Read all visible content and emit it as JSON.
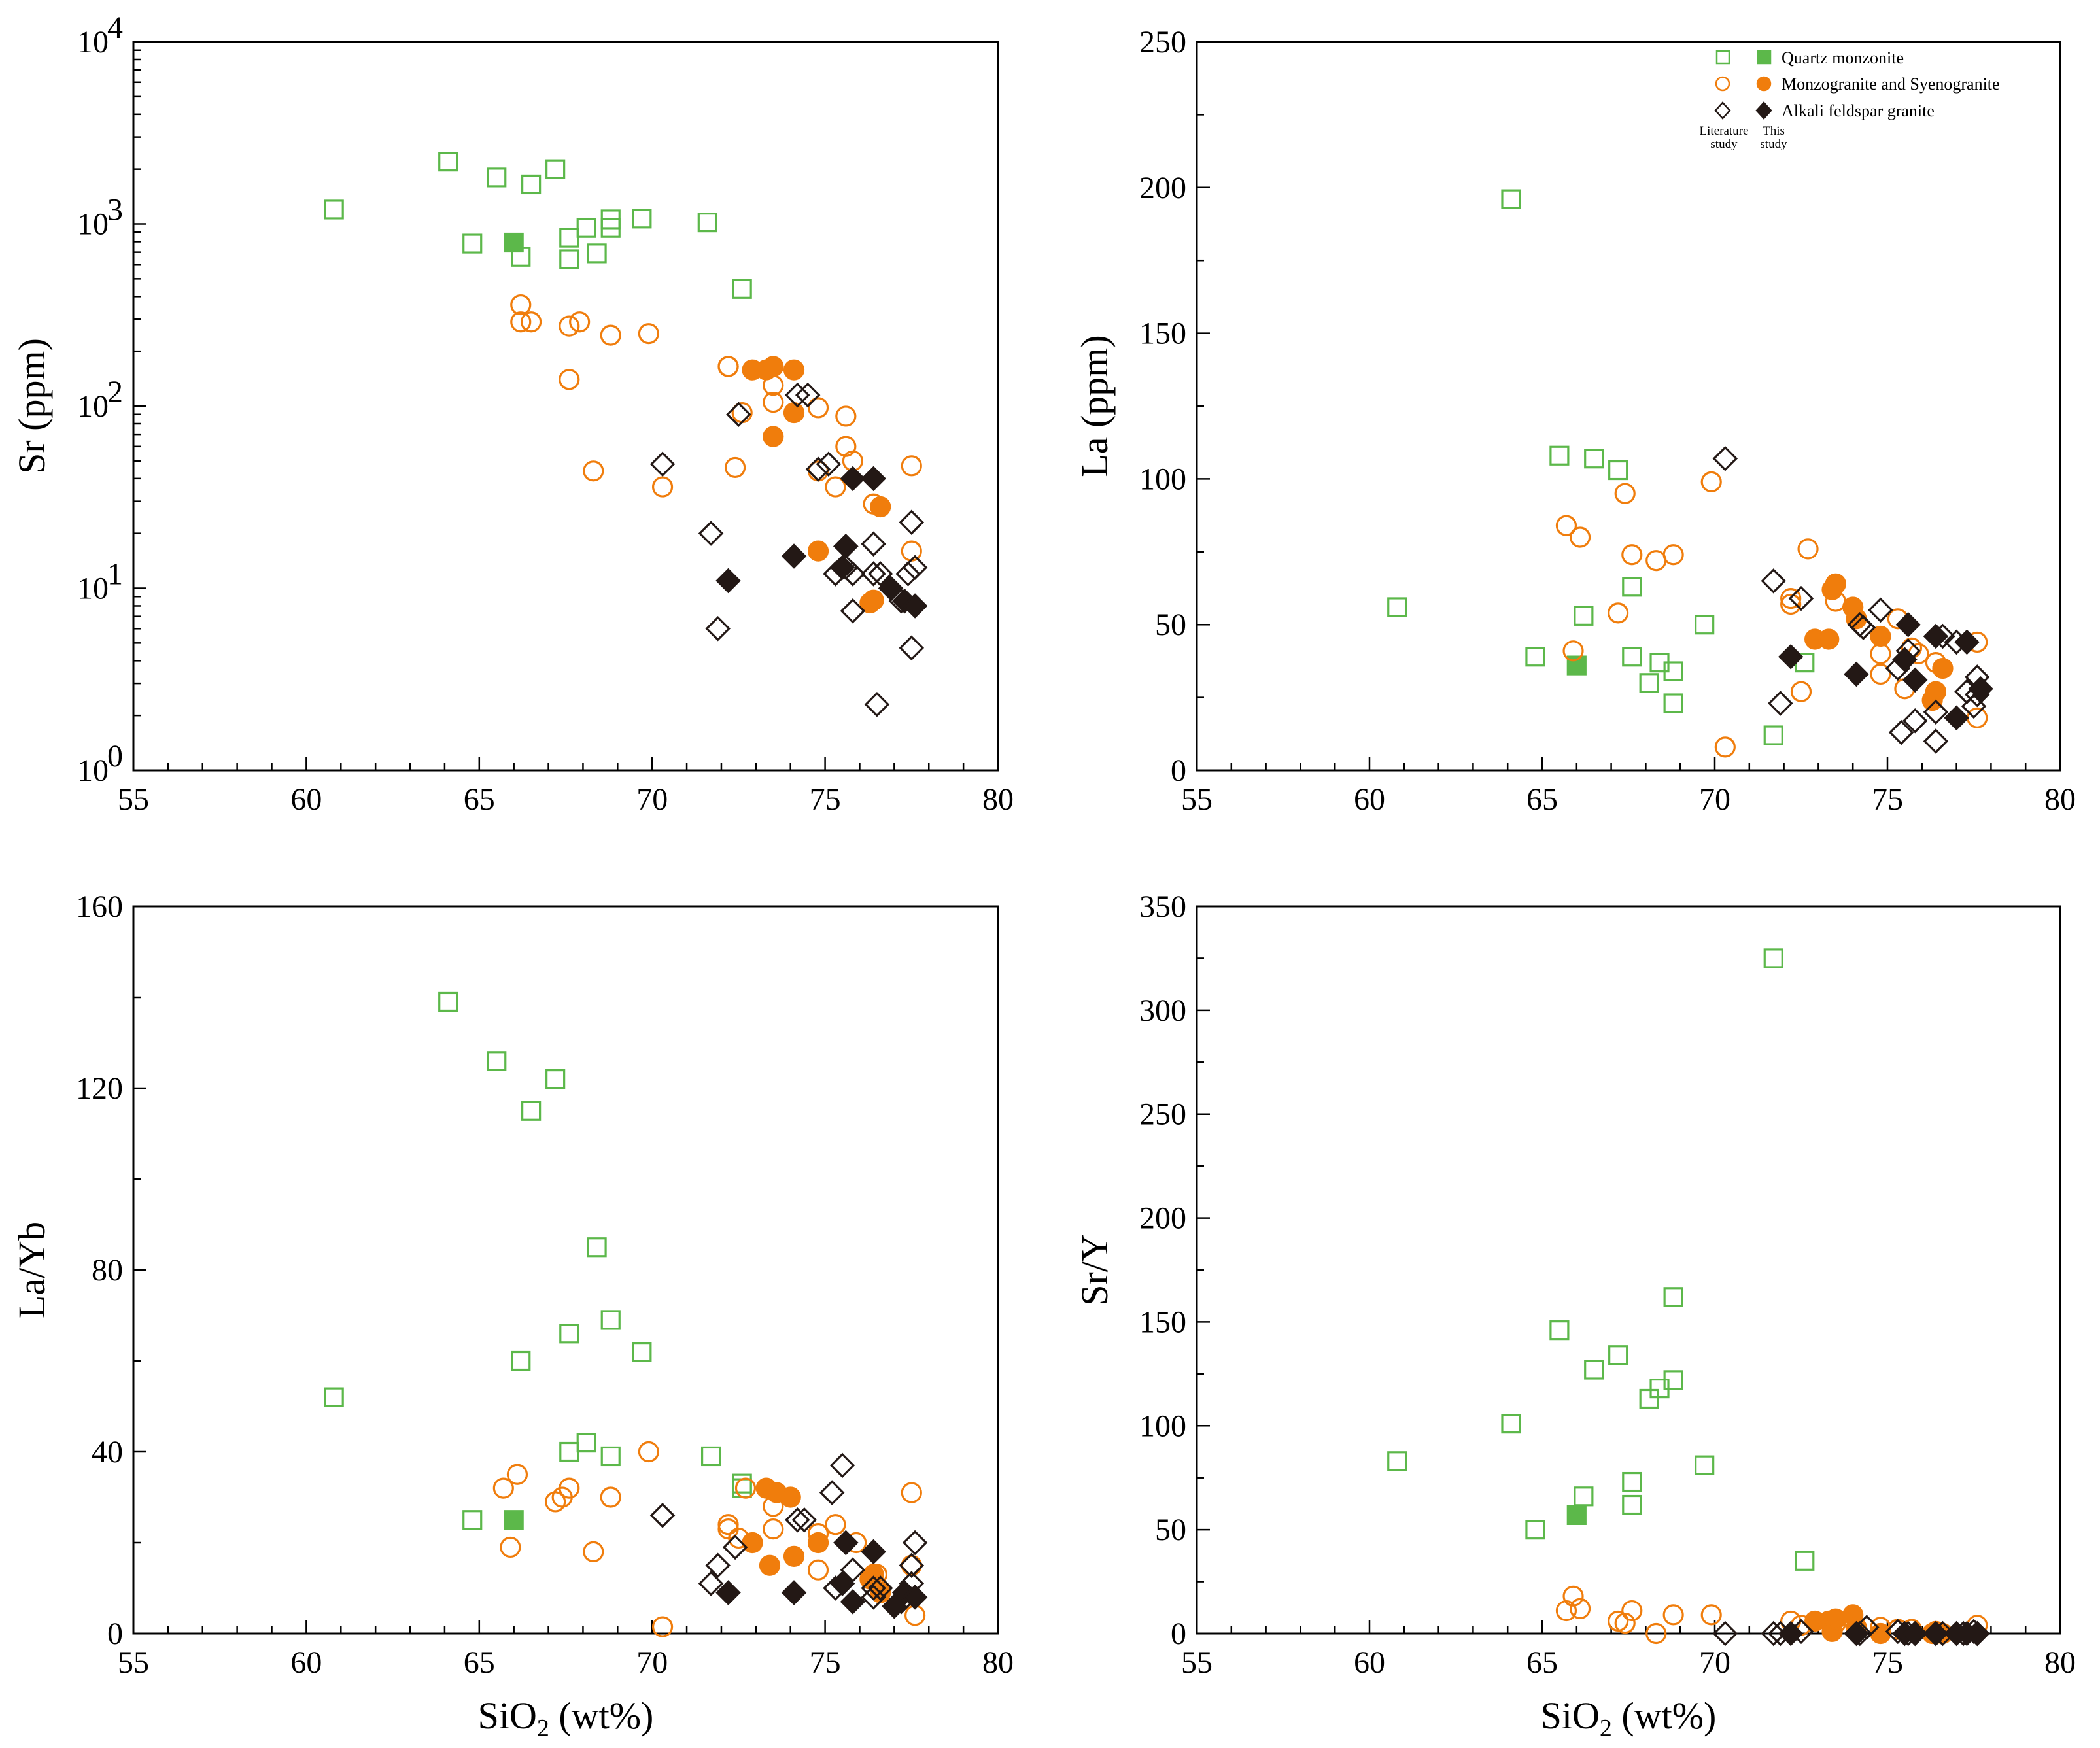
{
  "colors": {
    "quartz_monzonite": "#5cb84a",
    "monzogranite": "#f07d0c",
    "alkali_feldspar": "#231815",
    "axis": "#000000"
  },
  "legend": {
    "items": [
      {
        "key": "qm",
        "label": "Quartz monzonite"
      },
      {
        "key": "mg",
        "label": "Monzogranite  and Syenogranite"
      },
      {
        "key": "af",
        "label": "Alkali feldspar granite"
      }
    ],
    "literature_line1": "Literature",
    "literature_line2": "study",
    "this_line1": "This",
    "this_line2": "study"
  },
  "chart_data": [
    {
      "id": "sr",
      "type": "scatter",
      "ylabel": "Sr (ppm)",
      "xlabel": "",
      "yscale": "log",
      "xlim": [
        55,
        80
      ],
      "ylim": [
        1,
        10000
      ],
      "xticks": [
        "55",
        "60",
        "65",
        "70",
        "75",
        "80"
      ],
      "yticks": [
        {
          "base": "10",
          "exp": "0"
        },
        {
          "base": "10",
          "exp": "1"
        },
        {
          "base": "10",
          "exp": "2"
        },
        {
          "base": "10",
          "exp": "3"
        },
        {
          "base": "10",
          "exp": "4"
        }
      ],
      "series": [
        {
          "name": "Quartz monzonite (literature)",
          "marker": "square-open",
          "x": [
            60.8,
            64.1,
            64.8,
            65.5,
            66.2,
            66.5,
            67.2,
            67.6,
            67.6,
            68.1,
            68.4,
            68.8,
            68.8,
            69.7,
            71.6,
            72.6
          ],
          "y": [
            1200,
            2200,
            780,
            1800,
            660,
            1650,
            2000,
            840,
            640,
            950,
            690,
            950,
            1060,
            1070,
            1020,
            440
          ]
        },
        {
          "name": "Quartz monzonite (this study)",
          "marker": "square-filled",
          "x": [
            66.0
          ],
          "y": [
            790
          ]
        },
        {
          "name": "Monzogranite and Syenogranite (literature)",
          "marker": "circle-open",
          "x": [
            66.2,
            66.2,
            66.5,
            67.6,
            67.6,
            67.9,
            68.3,
            68.8,
            69.9,
            70.3,
            72.2,
            72.2,
            72.4,
            72.6,
            73.5,
            73.5,
            74.8,
            74.8,
            75.3,
            75.6,
            75.6,
            75.8,
            76.4,
            77.5,
            77.5
          ],
          "y": [
            360,
            290,
            290,
            140,
            275,
            290,
            44,
            245,
            250,
            36,
            165,
            165,
            46,
            92,
            130,
            105,
            98,
            44,
            36,
            88,
            60,
            50,
            29,
            47,
            16
          ]
        },
        {
          "name": "Monzogranite and Syenogranite (this study)",
          "marker": "circle-filled",
          "x": [
            72.9,
            73.3,
            73.5,
            74.1,
            73.5,
            74.1,
            74.8,
            76.3,
            76.4,
            76.6
          ],
          "y": [
            158,
            158,
            165,
            158,
            68,
            92,
            16,
            8.3,
            8.6,
            28
          ]
        },
        {
          "name": "Alkali feldspar granite (literature)",
          "marker": "diamond-open",
          "x": [
            70.3,
            71.7,
            71.9,
            72.5,
            74.2,
            74.5,
            74.8,
            75.1,
            75.3,
            75.6,
            75.6,
            75.8,
            75.8,
            76.4,
            76.4,
            76.6,
            77.2,
            77.4,
            77.5,
            77.5,
            77.6,
            76.5
          ],
          "y": [
            48,
            20,
            6,
            90,
            115,
            115,
            45,
            48,
            12,
            17,
            13,
            12,
            7.5,
            17.5,
            12,
            12,
            8.5,
            12,
            23,
            4.7,
            13,
            2.3
          ]
        },
        {
          "name": "Alkali feldspar granite (this study)",
          "marker": "diamond-filled",
          "x": [
            72.2,
            74.1,
            75.5,
            75.6,
            75.8,
            76.4,
            76.9,
            77.3,
            77.6
          ],
          "y": [
            11,
            15,
            13,
            17,
            40,
            40,
            10,
            8.5,
            8
          ]
        }
      ]
    },
    {
      "id": "la",
      "type": "scatter",
      "ylabel": "La (ppm)",
      "xlabel": "",
      "yscale": "linear",
      "xlim": [
        55,
        80
      ],
      "ylim": [
        0,
        250
      ],
      "xticks": [
        "55",
        "60",
        "65",
        "70",
        "75",
        "80"
      ],
      "yticks": [
        "0",
        "50",
        "100",
        "150",
        "200",
        "250"
      ],
      "series": [
        {
          "name": "Quartz monzonite (literature)",
          "marker": "square-open",
          "x": [
            60.8,
            64.1,
            64.8,
            65.5,
            66.2,
            66.5,
            67.2,
            67.6,
            67.6,
            68.1,
            68.4,
            68.8,
            68.8,
            69.7,
            71.7,
            72.6
          ],
          "y": [
            56,
            196,
            39,
            108,
            53,
            107,
            103,
            63,
            39,
            30,
            37,
            34,
            23,
            50,
            12,
            37
          ]
        },
        {
          "name": "Quartz monzonite (this study)",
          "marker": "square-filled",
          "x": [
            66.0
          ],
          "y": [
            36
          ]
        },
        {
          "name": "Monzogranite and Syenogranite (literature)",
          "marker": "circle-open",
          "x": [
            65.7,
            65.9,
            66.1,
            67.2,
            67.4,
            67.6,
            68.3,
            68.8,
            69.9,
            70.3,
            72.2,
            72.2,
            72.5,
            72.7,
            73.5,
            74.8,
            74.8,
            75.3,
            75.5,
            75.7,
            75.9,
            76.4,
            77.6,
            77.6
          ],
          "y": [
            84,
            41,
            80,
            54,
            95,
            74,
            72,
            74,
            99,
            8,
            59,
            57,
            27,
            76,
            58,
            40,
            33,
            52,
            28,
            42,
            40,
            37,
            44,
            18
          ]
        },
        {
          "name": "Monzogranite and Syenogranite (this study)",
          "marker": "circle-filled",
          "x": [
            72.9,
            73.3,
            73.4,
            73.5,
            74.0,
            74.1,
            74.8,
            76.3,
            76.4,
            76.6
          ],
          "y": [
            45,
            45,
            62,
            64,
            56,
            52,
            46,
            24,
            27,
            35
          ]
        },
        {
          "name": "Alkali feldspar granite (literature)",
          "marker": "diamond-open",
          "x": [
            70.3,
            71.7,
            71.9,
            72.5,
            74.2,
            74.3,
            74.8,
            75.3,
            75.4,
            75.6,
            75.8,
            76.4,
            76.4,
            76.6,
            77.0,
            77.3,
            77.5,
            77.6,
            77.6
          ],
          "y": [
            107,
            65,
            23,
            59,
            50,
            49,
            55,
            35,
            13,
            41,
            17,
            10,
            20,
            46,
            44,
            27,
            22,
            32,
            26
          ]
        },
        {
          "name": "Alkali feldspar granite (this study)",
          "marker": "diamond-filled",
          "x": [
            72.2,
            74.1,
            75.5,
            75.6,
            75.8,
            76.4,
            77.0,
            77.3,
            77.7
          ],
          "y": [
            39,
            33,
            38,
            50,
            31,
            46,
            18,
            44,
            28
          ]
        }
      ]
    },
    {
      "id": "layb",
      "type": "scatter",
      "ylabel": "La/Yb",
      "xlabel": "SiO2 (wt%)",
      "yscale": "linear",
      "xlim": [
        55,
        80
      ],
      "ylim": [
        0,
        160
      ],
      "xticks": [
        "55",
        "60",
        "65",
        "70",
        "75",
        "80"
      ],
      "yticks": [
        "0",
        "40",
        "80",
        "120",
        "160"
      ],
      "series": [
        {
          "name": "Quartz monzonite (literature)",
          "marker": "square-open",
          "x": [
            60.8,
            64.1,
            64.8,
            65.5,
            66.2,
            66.5,
            67.2,
            67.6,
            67.6,
            68.1,
            68.4,
            68.8,
            68.8,
            69.7,
            71.7,
            72.6,
            72.6
          ],
          "y": [
            52,
            139,
            25,
            126,
            60,
            115,
            122,
            40,
            66,
            42,
            85,
            69,
            39,
            62,
            39,
            33,
            32
          ]
        },
        {
          "name": "Quartz monzonite (this study)",
          "marker": "square-filled",
          "x": [
            66.0
          ],
          "y": [
            25
          ]
        },
        {
          "name": "Monzogranite and Syenogranite (literature)",
          "marker": "circle-open",
          "x": [
            65.7,
            65.9,
            66.1,
            67.2,
            67.4,
            67.6,
            68.3,
            68.8,
            69.9,
            70.3,
            72.2,
            72.2,
            72.5,
            72.7,
            73.5,
            73.5,
            74.8,
            74.8,
            75.3,
            75.9,
            76.5,
            77.5,
            77.5,
            77.6
          ],
          "y": [
            32,
            19,
            35,
            29,
            30,
            32,
            18,
            30,
            40,
            1.5,
            23,
            24,
            21,
            32,
            23,
            28,
            22,
            14,
            24,
            20,
            13,
            31,
            15,
            4
          ]
        },
        {
          "name": "Monzogranite and Syenogranite (this study)",
          "marker": "circle-filled",
          "x": [
            72.9,
            73.3,
            73.4,
            73.6,
            74.1,
            74.0,
            74.8,
            76.3,
            76.4,
            76.6
          ],
          "y": [
            20,
            32,
            15,
            31,
            17,
            30,
            20,
            12,
            13,
            9
          ]
        },
        {
          "name": "Alkali feldspar granite (literature)",
          "marker": "diamond-open",
          "x": [
            70.3,
            71.7,
            71.9,
            72.4,
            74.2,
            74.4,
            75.2,
            75.3,
            75.5,
            75.6,
            75.8,
            76.4,
            76.4,
            76.6,
            77.2,
            77.5,
            77.5,
            77.6
          ],
          "y": [
            26,
            11,
            15,
            19,
            25,
            25,
            31,
            10,
            37,
            20,
            14,
            8,
            10,
            10,
            7,
            11,
            15,
            20
          ]
        },
        {
          "name": "Alkali feldspar granite (this study)",
          "marker": "diamond-filled",
          "x": [
            72.2,
            74.1,
            75.5,
            75.6,
            75.8,
            76.4,
            77.0,
            77.3,
            77.6
          ],
          "y": [
            9,
            9,
            11,
            20,
            7,
            18,
            6,
            9,
            8
          ]
        }
      ]
    },
    {
      "id": "sry",
      "type": "scatter",
      "ylabel": "Sr/Y",
      "xlabel": "SiO2 (wt%)",
      "yscale": "linear",
      "xlim": [
        55,
        80
      ],
      "ylim": [
        0,
        350
      ],
      "xticks": [
        "55",
        "60",
        "65",
        "70",
        "75",
        "80"
      ],
      "yticks": [
        "0",
        "50",
        "100",
        "150",
        "200",
        "250",
        "300",
        "350"
      ],
      "series": [
        {
          "name": "Quartz monzonite (literature)",
          "marker": "square-open",
          "x": [
            60.8,
            64.1,
            64.8,
            65.5,
            66.2,
            66.5,
            67.2,
            67.6,
            67.6,
            68.1,
            68.4,
            68.8,
            68.8,
            69.7,
            71.7,
            72.6
          ],
          "y": [
            83,
            101,
            50,
            146,
            66,
            127,
            134,
            73,
            62,
            113,
            118,
            122,
            162,
            81,
            325,
            35
          ]
        },
        {
          "name": "Quartz monzonite (this study)",
          "marker": "square-filled",
          "x": [
            66.0
          ],
          "y": [
            57
          ]
        },
        {
          "name": "Monzogranite and Syenogranite (literature)",
          "marker": "circle-open",
          "x": [
            65.7,
            65.9,
            66.1,
            67.2,
            67.4,
            67.6,
            68.3,
            68.8,
            69.9,
            72.2,
            72.5,
            73.5,
            74.8,
            75.3,
            75.7,
            76.4,
            77.6
          ],
          "y": [
            11,
            18,
            12,
            6,
            5,
            11,
            0,
            9,
            9,
            6,
            4,
            5,
            3,
            2,
            2,
            1,
            4
          ]
        },
        {
          "name": "Monzogranite and Syenogranite (this study)",
          "marker": "circle-filled",
          "x": [
            72.9,
            73.3,
            73.4,
            73.5,
            74.0,
            74.1,
            74.8,
            76.3,
            76.4,
            76.6
          ],
          "y": [
            6,
            6,
            1,
            7,
            9,
            3,
            0,
            0,
            0,
            0
          ]
        },
        {
          "name": "Alkali feldspar granite (literature)",
          "marker": "diamond-open",
          "x": [
            70.3,
            71.7,
            71.9,
            72.5,
            74.2,
            74.4,
            75.3,
            75.6,
            75.8,
            76.4,
            76.6,
            77.2,
            77.5,
            77.6
          ],
          "y": [
            0,
            0,
            0,
            1,
            0,
            3,
            1,
            0,
            0,
            0,
            0,
            0,
            1,
            0
          ]
        },
        {
          "name": "Alkali feldspar granite (this study)",
          "marker": "diamond-filled",
          "x": [
            72.2,
            74.1,
            75.5,
            75.8,
            76.4,
            77.0,
            77.3,
            77.6
          ],
          "y": [
            0,
            0,
            0,
            0,
            0,
            0,
            0,
            0
          ]
        }
      ]
    }
  ]
}
